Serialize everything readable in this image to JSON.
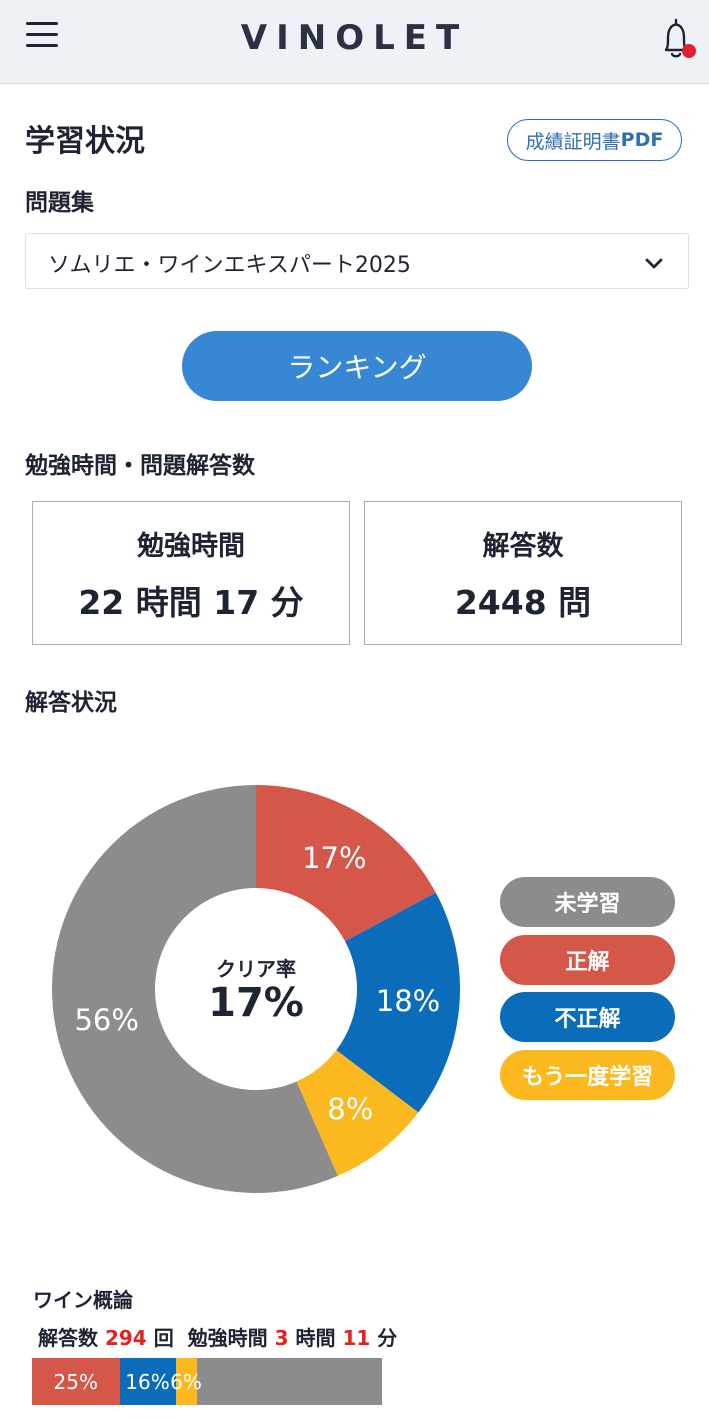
{
  "header": {
    "logo": "VINOLET",
    "menu_icon": "hamburger-menu-icon",
    "notification_icon": "bell-icon",
    "notification_dot_color": "#e5202e"
  },
  "page": {
    "title": "学習状況",
    "pdf_label": "成績証明書",
    "pdf_suffix": "PDF"
  },
  "question_set": {
    "label": "問題集",
    "selected": "ソムリエ・ワインエキスパート2025"
  },
  "ranking_label": "ランキング",
  "study_section": {
    "title": "勉強時間・問題解答数",
    "study_time": {
      "label": "勉強時間",
      "value": "22 時間 17 分"
    },
    "answers": {
      "label": "解答数",
      "value": "2448 問"
    }
  },
  "answer_status": {
    "title": "解答状況",
    "clear_rate_label": "クリア率",
    "clear_rate_value": "17%",
    "chart_data": {
      "type": "pie",
      "slices": [
        {
          "name": "正解",
          "value": 17,
          "label": "17%",
          "color": "#d4574a"
        },
        {
          "name": "不正解",
          "value": 18,
          "label": "18%",
          "color": "#0b6dba"
        },
        {
          "name": "もう一度学習",
          "value": 8,
          "label": "8%",
          "color": "#fbb91f"
        },
        {
          "name": "未学習",
          "value": 56,
          "label": "56%",
          "color": "#8c8c8c"
        }
      ],
      "legend": [
        "未学習",
        "正解",
        "不正解",
        "もう一度学習"
      ],
      "legend_placement": "right"
    }
  },
  "subjects": [
    {
      "name": "ワイン概論",
      "answers_label": "解答数",
      "answers": "294",
      "answers_unit": "回",
      "time_label": "勉強時間",
      "hours": "3",
      "hours_unit": "時間",
      "minutes": "11",
      "minutes_unit": "分",
      "segments": [
        {
          "name": "正解",
          "value": 25,
          "label": "25%",
          "color": "#d4574a"
        },
        {
          "name": "不正解",
          "value": 16,
          "label": "16%",
          "color": "#0b6dba"
        },
        {
          "name": "もう一度学習",
          "value": 6,
          "label": "6%",
          "color": "#fbb91f"
        }
      ]
    }
  ]
}
